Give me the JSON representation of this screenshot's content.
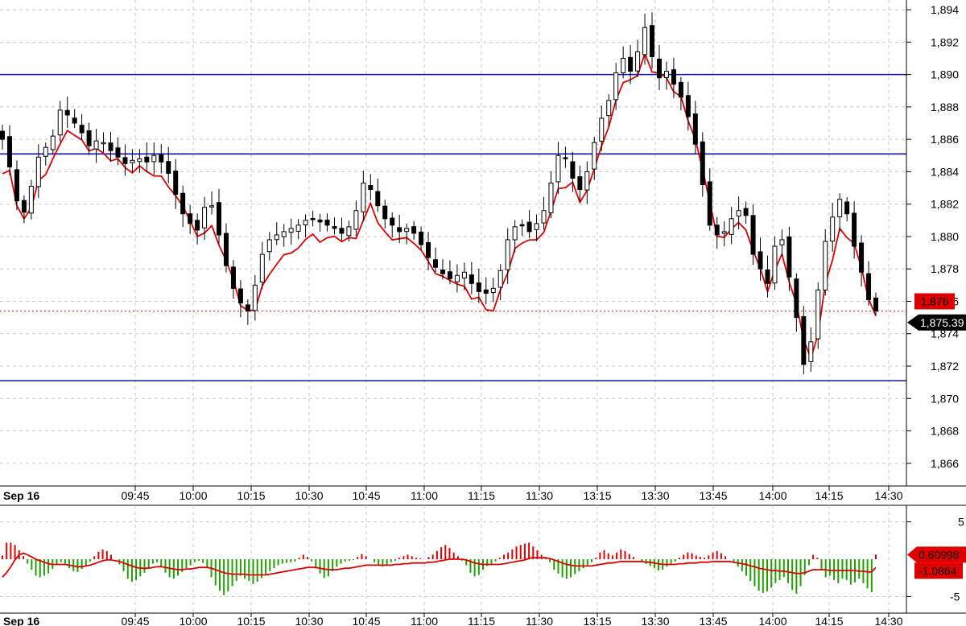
{
  "chart_data": [
    {
      "type": "candlestick",
      "title": "",
      "session_label": "Sep 16",
      "x_ticks": [
        "09:45",
        "10:00",
        "10:15",
        "10:30",
        "10:45",
        "11:00",
        "11:15",
        "11:30",
        "13:15",
        "13:30",
        "13:45",
        "14:00",
        "14:15",
        "14:30"
      ],
      "ylim": [
        1864.6,
        1894.6
      ],
      "y_ticks": [
        1866,
        1868,
        1870,
        1872,
        1874,
        1876,
        1878,
        1880,
        1882,
        1884,
        1886,
        1888,
        1890,
        1892,
        1894
      ],
      "y_tick_labels": [
        "1,866",
        "1,868",
        "1,870",
        "1,872",
        "1,874",
        "1,876",
        "1,878",
        "1,880",
        "1,882",
        "1,884",
        "1,886",
        "1,888",
        "1,890",
        "1,892",
        "1,894"
      ],
      "horizontal_levels": [
        1890.0,
        1885.1,
        1871.1
      ],
      "level_color": "#1010b0",
      "last_price": 1875.39,
      "last_price_label": "1,875.39",
      "overlay_price": 1876.0,
      "overlay_price_label": "1,876",
      "overlay_color": "#e00000",
      "candle_color": "#000000",
      "grid": true,
      "close": [
        1886.0,
        1884.3,
        1882.2,
        1881.5,
        1883.1,
        1884.9,
        1885.5,
        1886.2,
        1887.8,
        1887.5,
        1887.0,
        1886.4,
        1885.6,
        1885.9,
        1885.8,
        1885.3,
        1884.9,
        1884.5,
        1884.7,
        1884.8,
        1884.6,
        1885.0,
        1884.6,
        1883.9,
        1882.6,
        1881.4,
        1880.8,
        1880.4,
        1881.8,
        1881.9,
        1880.1,
        1878.2,
        1876.8,
        1875.9,
        1875.4,
        1877.0,
        1878.9,
        1879.8,
        1880.1,
        1880.3,
        1880.5,
        1880.7,
        1881.0,
        1881.1,
        1880.9,
        1880.7,
        1880.5,
        1880.2,
        1880.6,
        1881.6,
        1883.3,
        1882.9,
        1881.9,
        1881.1,
        1880.7,
        1880.3,
        1880.5,
        1880.2,
        1879.5,
        1878.7,
        1878.1,
        1877.7,
        1877.4,
        1877.6,
        1877.8,
        1877.1,
        1876.6,
        1876.5,
        1876.8,
        1877.9,
        1879.8,
        1880.6,
        1880.7,
        1880.3,
        1880.8,
        1881.6,
        1883.3,
        1885.0,
        1884.8,
        1883.6,
        1882.9,
        1884.0,
        1885.8,
        1887.3,
        1888.4,
        1890.1,
        1891.0,
        1890.2,
        1891.4,
        1892.9,
        1891.1,
        1889.8,
        1890.2,
        1889.4,
        1888.6,
        1887.4,
        1885.7,
        1883.2,
        1880.7,
        1880.1,
        1880.3,
        1881.1,
        1881.6,
        1881.3,
        1878.9,
        1878.0,
        1877.1,
        1879.4,
        1879.8,
        1877.5,
        1875.0,
        1872.1,
        1873.5,
        1876.7,
        1879.7,
        1881.2,
        1882.3,
        1881.4,
        1879.4,
        1877.8,
        1876.1,
        1875.4
      ]
    },
    {
      "type": "bar",
      "title": "",
      "session_label": "Sep 16",
      "x_ticks": [
        "09:45",
        "10:00",
        "10:15",
        "10:30",
        "10:45",
        "11:00",
        "11:15",
        "11:30",
        "13:15",
        "13:30",
        "13:45",
        "14:00",
        "14:15",
        "14:30"
      ],
      "ylim": [
        -7.2,
        7.2
      ],
      "y_ticks": [
        5,
        -5
      ],
      "y_tick_labels": [
        "5",
        "-5"
      ],
      "histogram_last": 0.60998,
      "histogram_last_label": "0.60998",
      "signal_last": -1.0864,
      "signal_last_label": "-1.0864",
      "positive_color": "#e00000",
      "negative_color": "#20a000",
      "signal_color": "#e00000",
      "values": [
        0.5,
        2.2,
        2.2,
        1.9,
        1.2,
        0.4,
        -0.6,
        -1.4,
        -2.2,
        -2.4,
        -2.2,
        -1.9,
        -1.3,
        -0.8,
        -0.4,
        -0.6,
        -1.2,
        -1.6,
        -1.7,
        -1.3,
        -0.8,
        -0.3,
        0.4,
        1.0,
        1.3,
        1.1,
        0.6,
        0.0,
        -0.7,
        -1.6,
        -2.6,
        -3.0,
        -2.8,
        -2.3,
        -1.8,
        -1.2,
        -0.6,
        -0.4,
        -0.9,
        -1.8,
        -2.4,
        -2.6,
        -2.2,
        -1.7,
        -1.2,
        -0.8,
        -0.4,
        -0.2,
        -0.5,
        -1.2,
        -2.4,
        -3.5,
        -4.2,
        -4.8,
        -4.3,
        -3.6,
        -2.9,
        -2.2,
        -2.6,
        -2.9,
        -3.3,
        -3.0,
        -2.5,
        -2.0,
        -1.6,
        -1.2,
        -0.8,
        -0.6,
        -0.5,
        -0.4,
        -0.3,
        0.2,
        0.6,
        0.3,
        -0.3,
        -1.2,
        -1.9,
        -2.5,
        -2.3,
        -1.6,
        -1.0,
        -0.6,
        -0.3,
        -0.2,
        -0.1,
        0.3,
        0.7,
        0.4,
        0.0,
        -0.4,
        -0.8,
        -1.0,
        -0.7,
        -0.4,
        -0.2,
        0.2,
        0.4,
        0.6,
        0.4,
        0.2,
        0.1,
        0.0,
        0.3,
        0.6,
        1.1,
        1.6,
        1.9,
        1.5,
        0.9,
        0.4,
        -0.2,
        -0.8,
        -1.8,
        -2.3,
        -2.1,
        -1.4,
        -0.9,
        -0.6,
        -0.3,
        0.2,
        0.6,
        0.9,
        1.3,
        1.7,
        1.9,
        2.1,
        2.2,
        1.7,
        1.2,
        0.6,
        0.2,
        -0.4,
        -1.4,
        -1.9,
        -2.4,
        -2.6,
        -2.4,
        -2.0,
        -1.6,
        -1.2,
        -0.8,
        -0.4,
        0.2,
        0.9,
        1.2,
        0.8,
        0.5,
        0.9,
        1.3,
        1.1,
        0.7,
        0.3,
        0.0,
        -0.3,
        -0.6,
        -0.9,
        -1.2,
        -1.5,
        -1.4,
        -1.0,
        -0.6,
        -0.3,
        0.2,
        0.6,
        0.9,
        0.8,
        0.5,
        0.3,
        0.2,
        0.5,
        0.9,
        1.1,
        0.8,
        0.4,
        0.0,
        -0.5,
        -1.0,
        -1.6,
        -2.2,
        -2.9,
        -3.6,
        -4.2,
        -4.5,
        -4.3,
        -3.8,
        -3.2,
        -2.8,
        -2.4,
        -3.2,
        -4.1,
        -4.6,
        -3.6,
        -2.1,
        -0.8,
        0.6,
        0.2,
        -1.5,
        -2.4,
        -2.2,
        -2.8,
        -3.2,
        -2.6,
        -2.8,
        -3.4,
        -3.1,
        -2.6,
        -3.2,
        -3.9,
        -4.4,
        0.6
      ],
      "signal": [
        -2.4,
        -1.8,
        -1.0,
        -0.1,
        0.6,
        0.8,
        0.6,
        0.3,
        0.0,
        -0.2,
        -0.4,
        -0.6,
        -0.7,
        -0.7,
        -0.7,
        -0.7,
        -0.8,
        -0.9,
        -1.0,
        -1.0,
        -0.9,
        -0.8,
        -0.6,
        -0.4,
        -0.2,
        -0.1,
        -0.1,
        -0.2,
        -0.3,
        -0.5,
        -0.7,
        -0.9,
        -1.1,
        -1.2,
        -1.2,
        -1.2,
        -1.1,
        -1.0,
        -1.0,
        -1.1,
        -1.2,
        -1.3,
        -1.4,
        -1.4,
        -1.3,
        -1.3,
        -1.2,
        -1.1,
        -1.1,
        -1.1,
        -1.2,
        -1.4,
        -1.6,
        -1.8,
        -1.9,
        -2.0,
        -2.0,
        -2.0,
        -2.0,
        -2.1,
        -2.1,
        -2.1,
        -2.1,
        -2.1,
        -2.0,
        -1.9,
        -1.8,
        -1.7,
        -1.6,
        -1.5,
        -1.4,
        -1.3,
        -1.2,
        -1.1,
        -1.1,
        -1.1,
        -1.2,
        -1.3,
        -1.4,
        -1.4,
        -1.4,
        -1.3,
        -1.2,
        -1.2,
        -1.1,
        -1.0,
        -0.9,
        -0.8,
        -0.8,
        -0.8,
        -0.8,
        -0.8,
        -0.8,
        -0.8,
        -0.7,
        -0.7,
        -0.6,
        -0.6,
        -0.5,
        -0.5,
        -0.5,
        -0.5,
        -0.4,
        -0.4,
        -0.3,
        -0.2,
        -0.1,
        0.0,
        0.0,
        0.0,
        0.0,
        -0.1,
        -0.3,
        -0.5,
        -0.6,
        -0.7,
        -0.7,
        -0.7,
        -0.7,
        -0.7,
        -0.6,
        -0.5,
        -0.4,
        -0.3,
        -0.2,
        -0.1,
        0.1,
        0.2,
        0.2,
        0.2,
        0.2,
        0.1,
        -0.1,
        -0.3,
        -0.5,
        -0.7,
        -0.8,
        -0.9,
        -0.9,
        -0.9,
        -0.9,
        -0.9,
        -0.8,
        -0.7,
        -0.6,
        -0.5,
        -0.5,
        -0.4,
        -0.3,
        -0.3,
        -0.3,
        -0.3,
        -0.3,
        -0.3,
        -0.4,
        -0.4,
        -0.5,
        -0.6,
        -0.7,
        -0.7,
        -0.7,
        -0.7,
        -0.6,
        -0.6,
        -0.5,
        -0.5,
        -0.5,
        -0.4,
        -0.4,
        -0.4,
        -0.3,
        -0.3,
        -0.3,
        -0.3,
        -0.3,
        -0.4,
        -0.5,
        -0.6,
        -0.7,
        -0.9,
        -1.0,
        -1.2,
        -1.3,
        -1.4,
        -1.5,
        -1.5,
        -1.6,
        -1.6,
        -1.7,
        -1.8,
        -1.9,
        -1.9,
        -1.8,
        -1.6,
        -1.4,
        -1.4,
        -1.4,
        -1.4,
        -1.5,
        -1.5,
        -1.5,
        -1.5,
        -1.5,
        -1.5,
        -1.5,
        -1.6,
        -1.6,
        -1.7,
        -1.7,
        -1.1
      ]
    }
  ]
}
